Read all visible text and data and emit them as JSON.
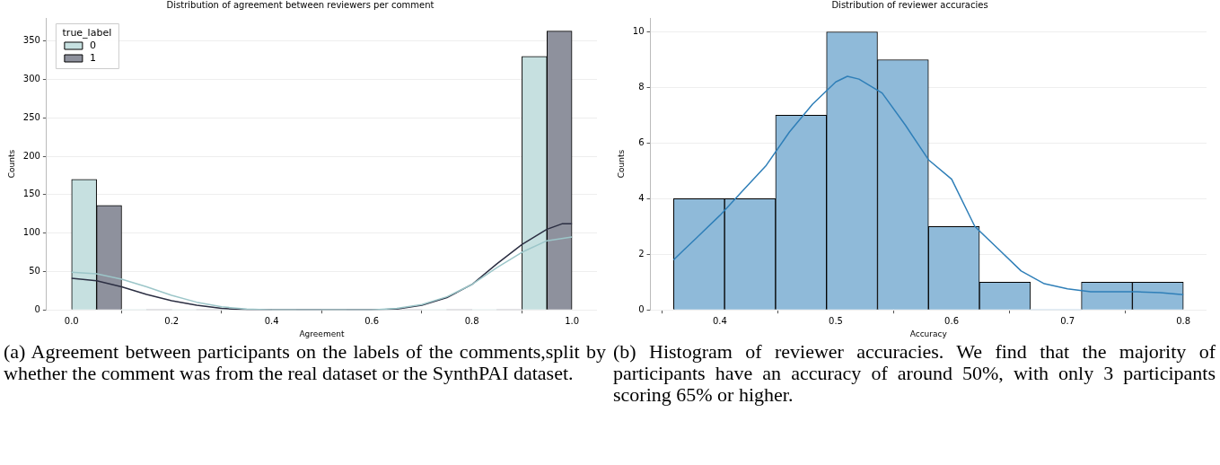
{
  "chart_data": [
    {
      "type": "histogram",
      "title": "Distribution of agreement between reviewers per comment",
      "xlabel": "Agreement",
      "ylabel": "Counts",
      "legend_title": "true_label",
      "legend": "top left",
      "grid": "y",
      "bins": [
        0,
        0.1,
        0.2,
        0.3,
        0.4,
        0.5,
        0.6,
        0.7,
        0.8,
        0.9,
        1.0
      ],
      "series": [
        {
          "name": "0",
          "color": "#c6e0e0",
          "values": [
            170,
            0,
            0,
            0,
            0,
            0,
            0,
            0,
            0,
            330
          ]
        },
        {
          "name": "1",
          "color": "#8e919d",
          "values": [
            136,
            0,
            0,
            0,
            0,
            0,
            0,
            0,
            0,
            363
          ]
        },
        {
          "type": "line",
          "color": "#9cc6c9",
          "x": [
            0,
            0.05,
            0.1,
            0.15,
            0.2,
            0.25,
            0.3,
            0.35,
            0.4,
            0.6,
            0.65,
            0.7,
            0.75,
            0.8,
            0.85,
            0.9,
            0.95,
            1.0
          ],
          "values": [
            49,
            47,
            40,
            30,
            19,
            10,
            4,
            1,
            0,
            0,
            2,
            7,
            17,
            33,
            55,
            75,
            90,
            95
          ]
        },
        {
          "type": "line",
          "color": "#2b2e42",
          "x": [
            0,
            0.05,
            0.1,
            0.15,
            0.2,
            0.25,
            0.3,
            0.35,
            0.4,
            0.6,
            0.65,
            0.7,
            0.75,
            0.8,
            0.85,
            0.9,
            0.95,
            0.98,
            1.0
          ],
          "values": [
            41,
            38,
            30,
            20,
            12,
            6,
            2,
            0,
            0,
            0,
            1,
            6,
            16,
            33,
            60,
            85,
            105,
            112,
            112
          ]
        }
      ],
      "xlim": [
        -0.05,
        1.05
      ],
      "xticks": [
        {
          "value": 0,
          "label": "0.0"
        },
        0.2,
        0.4,
        0.6,
        0.8,
        {
          "value": 1,
          "label": "1.0"
        }
      ],
      "ylim": [
        0,
        380
      ],
      "yticks": [
        0,
        50,
        100,
        150,
        200,
        250,
        300,
        350
      ],
      "annotations": [
        "(a) Agreement between participants on the labels of the comments,split by whether the comment was from the real dataset or the SynthPAI dataset."
      ]
    },
    {
      "type": "histogram",
      "title": "Distribution of reviewer accuracies",
      "xlabel": "Accuracy",
      "ylabel": "Counts",
      "grid": "y",
      "bins": [
        0.36,
        0.404,
        0.448,
        0.492,
        0.536,
        0.58,
        0.624,
        0.668,
        0.712,
        0.756,
        0.8
      ],
      "series": [
        {
          "color": "#8fbad9",
          "values": [
            4,
            4,
            7,
            10,
            9,
            3,
            1,
            0,
            1,
            1
          ]
        },
        {
          "type": "line",
          "color": "#2f7fb8",
          "x": [
            0.36,
            0.38,
            0.4,
            0.42,
            0.44,
            0.46,
            0.48,
            0.5,
            0.51,
            0.52,
            0.54,
            0.56,
            0.58,
            0.6,
            0.62,
            0.64,
            0.66,
            0.68,
            0.7,
            0.72,
            0.76,
            0.78,
            0.8
          ],
          "values": [
            1.8,
            2.6,
            3.4,
            4.3,
            5.2,
            6.4,
            7.4,
            8.2,
            8.4,
            8.3,
            7.8,
            6.65,
            5.4,
            4.7,
            3.0,
            2.2,
            1.4,
            0.94,
            0.76,
            0.65,
            0.65,
            0.62,
            0.55
          ]
        }
      ],
      "xlim": [
        0.34,
        0.82
      ],
      "xticks": [
        0.4,
        0.5,
        0.6,
        0.7,
        0.8
      ],
      "ylim": [
        0,
        10.5
      ],
      "yticks": [
        0,
        2,
        4,
        6,
        8,
        10
      ],
      "annotations": [
        "(b) Histogram of reviewer accuracies. We find that the majority of participants have an accuracy of around 50%, with only 3 participants scoring 65% or higher."
      ]
    }
  ]
}
